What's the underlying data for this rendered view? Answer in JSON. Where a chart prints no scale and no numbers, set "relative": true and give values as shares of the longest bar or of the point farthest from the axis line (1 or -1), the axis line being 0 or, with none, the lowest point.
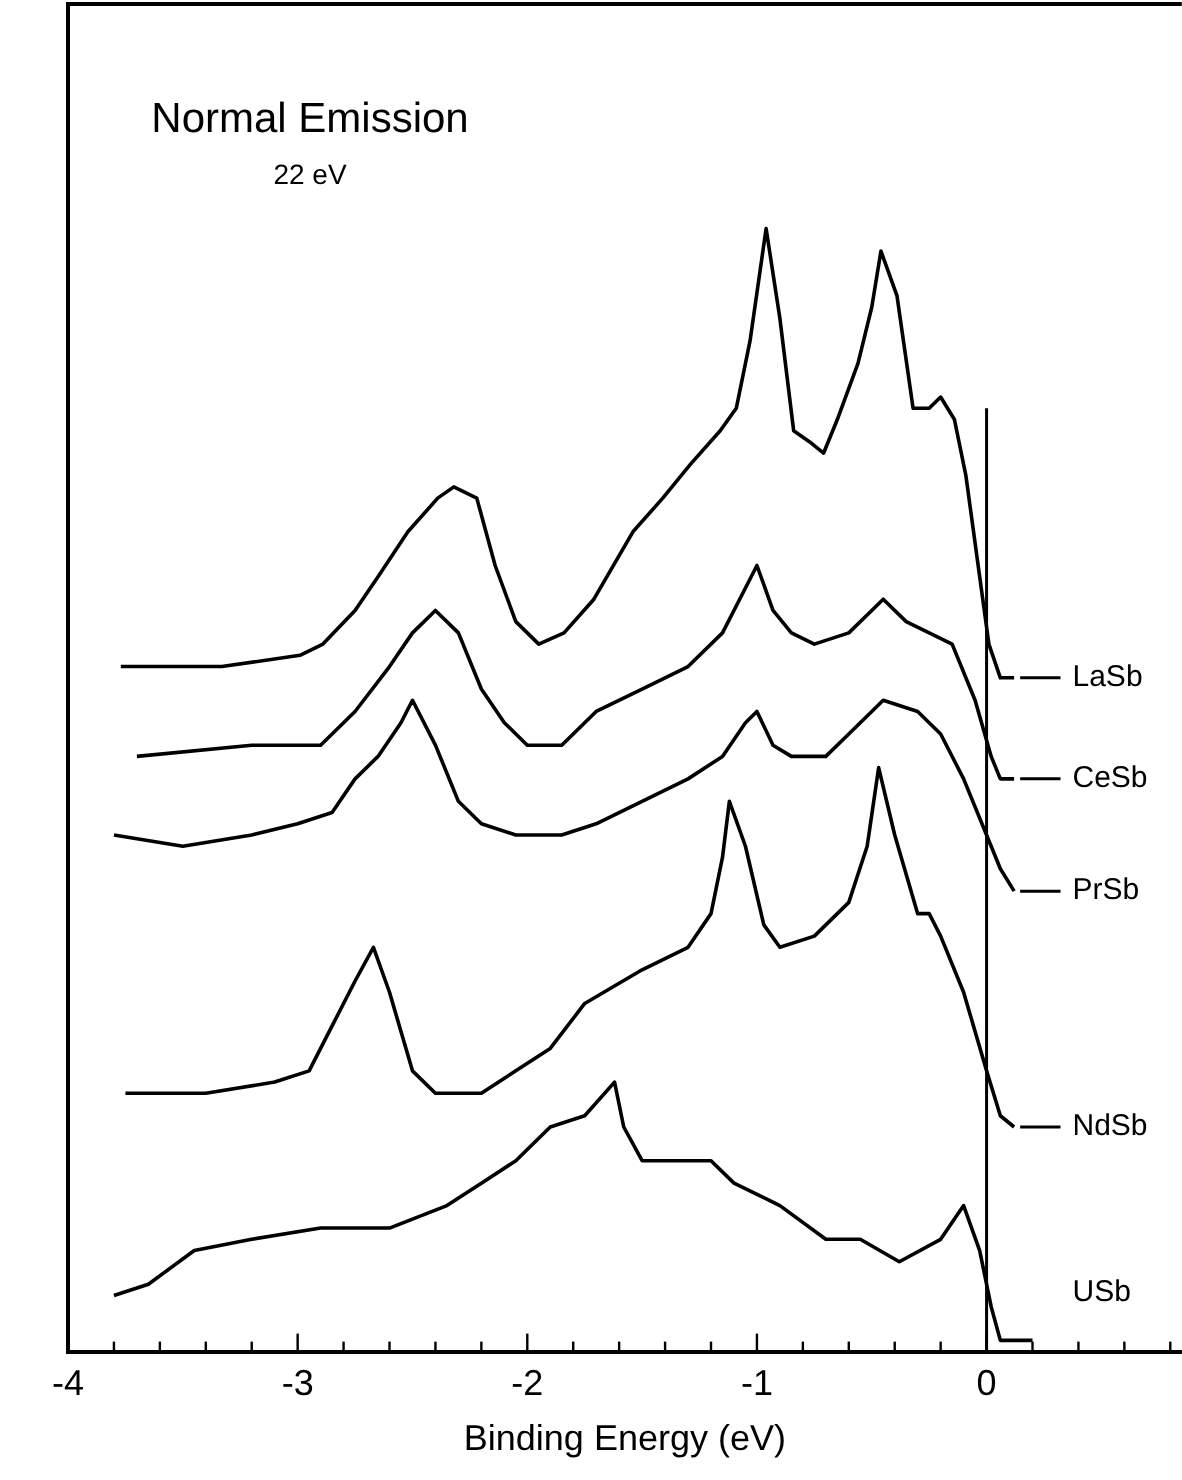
{
  "chart_data": {
    "type": "line",
    "relative": true,
    "xlabel": "Binding Energy (eV)",
    "annotations": [
      "Normal Emission",
      "22 eV"
    ],
    "xlim": [
      -4,
      0.85
    ],
    "xticks": [
      -4,
      {
        "value": -3.8,
        "label": null
      },
      {
        "value": -3.6,
        "label": null
      },
      {
        "value": -3.4,
        "label": null
      },
      {
        "value": -3.2,
        "label": null
      },
      -3,
      {
        "value": -2.8,
        "label": null
      },
      {
        "value": -2.6,
        "label": null
      },
      {
        "value": -2.4,
        "label": null
      },
      {
        "value": -2.2,
        "label": null
      },
      -2,
      {
        "value": -1.8,
        "label": null
      },
      {
        "value": -1.6,
        "label": null
      },
      {
        "value": -1.4,
        "label": null
      },
      {
        "value": -1.2,
        "label": null
      },
      -1,
      {
        "value": -0.8,
        "label": null
      },
      {
        "value": -0.6,
        "label": null
      },
      {
        "value": -0.4,
        "label": null
      },
      {
        "value": -0.2,
        "label": null
      },
      0,
      {
        "value": 0.2,
        "label": null
      },
      {
        "value": 0.4,
        "label": null
      },
      {
        "value": 0.6,
        "label": null
      },
      {
        "value": 0.8,
        "label": null
      }
    ],
    "grid": false,
    "legend": "right",
    "marker": "none",
    "line_style": "solid",
    "ref_lines": [
      {
        "axis": "x",
        "value": 0,
        "color": "#000000"
      }
    ],
    "series": [
      {
        "name": "LaSb",
        "color": "#000000",
        "x": [
          -3.77,
          -3.33,
          -2.99,
          -2.89,
          -2.75,
          -2.65,
          -2.52,
          -2.39,
          -2.32,
          -2.22,
          -2.14,
          -2.05,
          -1.95,
          -1.84,
          -1.71,
          -1.54,
          -1.41,
          -1.29,
          -1.16,
          -1.09,
          -1.03,
          -0.96,
          -0.9,
          -0.84,
          -0.77,
          -0.71,
          -0.65,
          -0.56,
          -0.5,
          -0.46,
          -0.39,
          -0.32,
          -0.25,
          -0.2,
          -0.14,
          -0.09,
          -0.03,
          0.01,
          0.06,
          0.12
        ],
        "values": [
          0.61,
          0.61,
          0.62,
          0.63,
          0.66,
          0.69,
          0.73,
          0.76,
          0.77,
          0.76,
          0.7,
          0.65,
          0.63,
          0.64,
          0.67,
          0.73,
          0.76,
          0.79,
          0.82,
          0.84,
          0.9,
          1,
          0.92,
          0.82,
          0.81,
          0.8,
          0.83,
          0.88,
          0.93,
          0.98,
          0.94,
          0.84,
          0.84,
          0.85,
          0.83,
          0.78,
          0.69,
          0.63,
          0.6,
          0.6
        ]
      },
      {
        "name": "CeSb",
        "color": "#000000",
        "x": [
          -3.7,
          -3.2,
          -2.9,
          -2.75,
          -2.6,
          -2.5,
          -2.4,
          -2.3,
          -2.2,
          -2.1,
          -2,
          -1.85,
          -1.7,
          -1.5,
          -1.3,
          -1.15,
          -1.05,
          -1,
          -0.93,
          -0.85,
          -0.75,
          -0.6,
          -0.5,
          -0.45,
          -0.35,
          -0.25,
          -0.15,
          -0.05,
          0.02,
          0.06,
          0.12
        ],
        "values": [
          0.53,
          0.54,
          0.54,
          0.57,
          0.61,
          0.64,
          0.66,
          0.64,
          0.59,
          0.56,
          0.54,
          0.54,
          0.57,
          0.59,
          0.61,
          0.64,
          0.68,
          0.7,
          0.66,
          0.64,
          0.63,
          0.64,
          0.66,
          0.67,
          0.65,
          0.64,
          0.63,
          0.58,
          0.53,
          0.51,
          0.51
        ]
      },
      {
        "name": "PrSb",
        "color": "#000000",
        "x": [
          -3.8,
          -3.5,
          -3.2,
          -3,
          -2.85,
          -2.75,
          -2.65,
          -2.55,
          -2.5,
          -2.4,
          -2.3,
          -2.2,
          -2.05,
          -1.85,
          -1.7,
          -1.5,
          -1.3,
          -1.15,
          -1.05,
          -1,
          -0.93,
          -0.85,
          -0.7,
          -0.6,
          -0.5,
          -0.45,
          -0.3,
          -0.2,
          -0.1,
          0,
          0.06,
          0.12
        ],
        "values": [
          0.46,
          0.45,
          0.46,
          0.47,
          0.48,
          0.51,
          0.53,
          0.56,
          0.58,
          0.54,
          0.49,
          0.47,
          0.46,
          0.46,
          0.47,
          0.49,
          0.51,
          0.53,
          0.56,
          0.57,
          0.54,
          0.53,
          0.53,
          0.55,
          0.57,
          0.58,
          0.57,
          0.55,
          0.51,
          0.46,
          0.43,
          0.41
        ]
      },
      {
        "name": "NdSb",
        "color": "#000000",
        "x": [
          -3.75,
          -3.4,
          -3.1,
          -2.95,
          -2.85,
          -2.75,
          -2.67,
          -2.6,
          -2.5,
          -2.4,
          -2.2,
          -2.05,
          -1.9,
          -1.75,
          -1.5,
          -1.3,
          -1.2,
          -1.15,
          -1.12,
          -1.05,
          -0.97,
          -0.9,
          -0.75,
          -0.6,
          -0.52,
          -0.47,
          -0.4,
          -0.3,
          -0.25,
          -0.2,
          -0.1,
          0,
          0.06,
          0.12
        ],
        "values": [
          0.23,
          0.23,
          0.24,
          0.25,
          0.29,
          0.33,
          0.36,
          0.32,
          0.25,
          0.23,
          0.23,
          0.25,
          0.27,
          0.31,
          0.34,
          0.36,
          0.39,
          0.44,
          0.49,
          0.45,
          0.38,
          0.36,
          0.37,
          0.4,
          0.45,
          0.52,
          0.46,
          0.39,
          0.39,
          0.37,
          0.32,
          0.25,
          0.21,
          0.2
        ]
      },
      {
        "name": "USb",
        "color": "#000000",
        "x": [
          -3.8,
          -3.65,
          -3.45,
          -3.2,
          -2.9,
          -2.6,
          -2.35,
          -2.2,
          -2.05,
          -1.9,
          -1.75,
          -1.62,
          -1.58,
          -1.5,
          -1.3,
          -1.2,
          -1.1,
          -0.9,
          -0.7,
          -0.55,
          -0.38,
          -0.2,
          -0.1,
          -0.03,
          0.02,
          0.06,
          0.12,
          0.2
        ],
        "values": [
          0.05,
          0.06,
          0.09,
          0.1,
          0.11,
          0.11,
          0.13,
          0.15,
          0.17,
          0.2,
          0.21,
          0.24,
          0.2,
          0.17,
          0.17,
          0.17,
          0.15,
          0.13,
          0.1,
          0.1,
          0.08,
          0.1,
          0.13,
          0.09,
          0.04,
          0.01,
          0.01,
          0.01
        ]
      }
    ]
  }
}
